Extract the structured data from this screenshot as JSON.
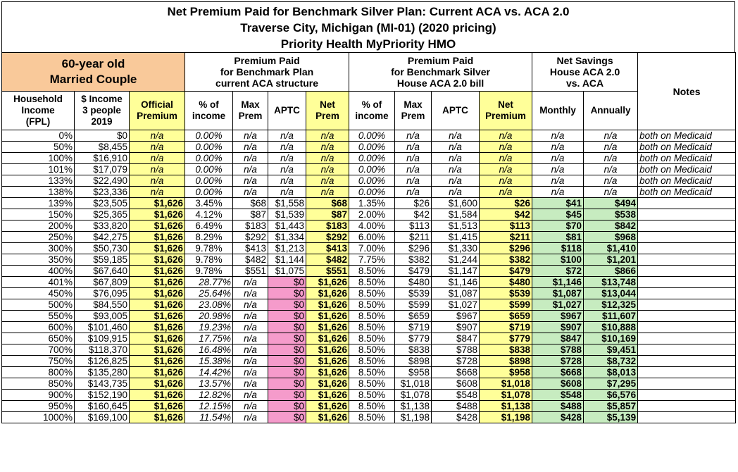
{
  "header": {
    "title_lines": [
      "Net Premium Paid for Benchmark Silver Plan: Current ACA vs. ACA 2.0",
      "Traverse City, Michigan (MI-01) (2020 pricing)",
      "Priority Health MyPriority HMO"
    ]
  },
  "table": {
    "group_headers": [
      {
        "lines": [
          "60-year old",
          "Married Couple"
        ]
      },
      {
        "lines": [
          "Premium Paid",
          "for Benchmark Plan",
          "current ACA structure"
        ]
      },
      {
        "lines": [
          "Premium Paid",
          "for Benchmark Silver",
          "House ACA 2.0 bill"
        ]
      },
      {
        "lines": [
          "Net Savings",
          "House ACA 2.0",
          "vs. ACA"
        ]
      },
      {
        "lines": [
          "Notes"
        ]
      }
    ],
    "column_headers": [
      [
        "Household",
        "Income",
        "(FPL)"
      ],
      [
        "$ Income",
        "3 people",
        "2019"
      ],
      [
        "Official",
        "Premium"
      ],
      [
        "% of",
        "income"
      ],
      [
        "Max",
        "Prem"
      ],
      [
        "APTC"
      ],
      [
        "Net",
        "Prem"
      ],
      [
        "% of",
        "income"
      ],
      [
        "Max",
        "Prem"
      ],
      [
        "APTC"
      ],
      [
        "Net",
        "Premium"
      ],
      [
        "Monthly"
      ],
      [
        "Annually"
      ]
    ],
    "rows": [
      [
        "0%",
        "$0",
        "n/a",
        "0.00%",
        "n/a",
        "n/a",
        "n/a",
        "0.00%",
        "n/a",
        "n/a",
        "n/a",
        "n/a",
        "n/a",
        "both on Medicaid"
      ],
      [
        "50%",
        "$8,455",
        "n/a",
        "0.00%",
        "n/a",
        "n/a",
        "n/a",
        "0.00%",
        "n/a",
        "n/a",
        "n/a",
        "n/a",
        "n/a",
        "both on Medicaid"
      ],
      [
        "100%",
        "$16,910",
        "n/a",
        "0.00%",
        "n/a",
        "n/a",
        "n/a",
        "0.00%",
        "n/a",
        "n/a",
        "n/a",
        "n/a",
        "n/a",
        "both on Medicaid"
      ],
      [
        "101%",
        "$17,079",
        "n/a",
        "0.00%",
        "n/a",
        "n/a",
        "n/a",
        "0.00%",
        "n/a",
        "n/a",
        "n/a",
        "n/a",
        "n/a",
        "both on Medicaid"
      ],
      [
        "133%",
        "$22,490",
        "n/a",
        "0.00%",
        "n/a",
        "n/a",
        "n/a",
        "0.00%",
        "n/a",
        "n/a",
        "n/a",
        "n/a",
        "n/a",
        "both on Medicaid"
      ],
      [
        "138%",
        "$23,336",
        "n/a",
        "0.00%",
        "n/a",
        "n/a",
        "n/a",
        "0.00%",
        "n/a",
        "n/a",
        "n/a",
        "n/a",
        "n/a",
        "both on Medicaid"
      ],
      [
        "139%",
        "$23,505",
        "$1,626",
        "3.45%",
        "$68",
        "$1,558",
        "$68",
        "1.35%",
        "$26",
        "$1,600",
        "$26",
        "$41",
        "$494"
      ],
      [
        "150%",
        "$25,365",
        "$1,626",
        "4.12%",
        "$87",
        "$1,539",
        "$87",
        "2.00%",
        "$42",
        "$1,584",
        "$42",
        "$45",
        "$538"
      ],
      [
        "200%",
        "$33,820",
        "$1,626",
        "6.49%",
        "$183",
        "$1,443",
        "$183",
        "4.00%",
        "$113",
        "$1,513",
        "$113",
        "$70",
        "$842"
      ],
      [
        "250%",
        "$42,275",
        "$1,626",
        "8.29%",
        "$292",
        "$1,334",
        "$292",
        "6.00%",
        "$211",
        "$1,415",
        "$211",
        "$81",
        "$968"
      ],
      [
        "300%",
        "$50,730",
        "$1,626",
        "9.78%",
        "$413",
        "$1,213",
        "$413",
        "7.00%",
        "$296",
        "$1,330",
        "$296",
        "$118",
        "$1,410"
      ],
      [
        "350%",
        "$59,185",
        "$1,626",
        "9.78%",
        "$482",
        "$1,144",
        "$482",
        "7.75%",
        "$382",
        "$1,244",
        "$382",
        "$100",
        "$1,201"
      ],
      [
        "400%",
        "$67,640",
        "$1,626",
        "9.78%",
        "$551",
        "$1,075",
        "$551",
        "8.50%",
        "$479",
        "$1,147",
        "$479",
        "$72",
        "$866"
      ],
      [
        "401%",
        "$67,809",
        "$1,626",
        "28.77%",
        "n/a",
        "$0",
        "$1,626",
        "8.50%",
        "$480",
        "$1,146",
        "$480",
        "$1,146",
        "$13,748"
      ],
      [
        "450%",
        "$76,095",
        "$1,626",
        "25.64%",
        "n/a",
        "$0",
        "$1,626",
        "8.50%",
        "$539",
        "$1,087",
        "$539",
        "$1,087",
        "$13,044"
      ],
      [
        "500%",
        "$84,550",
        "$1,626",
        "23.08%",
        "n/a",
        "$0",
        "$1,626",
        "8.50%",
        "$599",
        "$1,027",
        "$599",
        "$1,027",
        "$12,325"
      ],
      [
        "550%",
        "$93,005",
        "$1,626",
        "20.98%",
        "n/a",
        "$0",
        "$1,626",
        "8.50%",
        "$659",
        "$967",
        "$659",
        "$967",
        "$11,607"
      ],
      [
        "600%",
        "$101,460",
        "$1,626",
        "19.23%",
        "n/a",
        "$0",
        "$1,626",
        "8.50%",
        "$719",
        "$907",
        "$719",
        "$907",
        "$10,888"
      ],
      [
        "650%",
        "$109,915",
        "$1,626",
        "17.75%",
        "n/a",
        "$0",
        "$1,626",
        "8.50%",
        "$779",
        "$847",
        "$779",
        "$847",
        "$10,169"
      ],
      [
        "700%",
        "$118,370",
        "$1,626",
        "16.48%",
        "n/a",
        "$0",
        "$1,626",
        "8.50%",
        "$838",
        "$788",
        "$838",
        "$788",
        "$9,451"
      ],
      [
        "750%",
        "$126,825",
        "$1,626",
        "15.38%",
        "n/a",
        "$0",
        "$1,626",
        "8.50%",
        "$898",
        "$728",
        "$898",
        "$728",
        "$8,732"
      ],
      [
        "800%",
        "$135,280",
        "$1,626",
        "14.42%",
        "n/a",
        "$0",
        "$1,626",
        "8.50%",
        "$958",
        "$668",
        "$958",
        "$668",
        "$8,013"
      ],
      [
        "850%",
        "$143,735",
        "$1,626",
        "13.57%",
        "n/a",
        "$0",
        "$1,626",
        "8.50%",
        "$1,018",
        "$608",
        "$1,018",
        "$608",
        "$7,295"
      ],
      [
        "900%",
        "$152,190",
        "$1,626",
        "12.82%",
        "n/a",
        "$0",
        "$1,626",
        "8.50%",
        "$1,078",
        "$548",
        "$1,078",
        "$548",
        "$6,576"
      ],
      [
        "950%",
        "$160,645",
        "$1,626",
        "12.15%",
        "n/a",
        "$0",
        "$1,626",
        "8.50%",
        "$1,138",
        "$488",
        "$1,138",
        "$488",
        "$5,857"
      ],
      [
        "1000%",
        "$169,100",
        "$1,626",
        "11.54%",
        "n/a",
        "$0",
        "$1,626",
        "8.50%",
        "$1,198",
        "$428",
        "$1,198",
        "$428",
        "$5,139"
      ]
    ]
  }
}
